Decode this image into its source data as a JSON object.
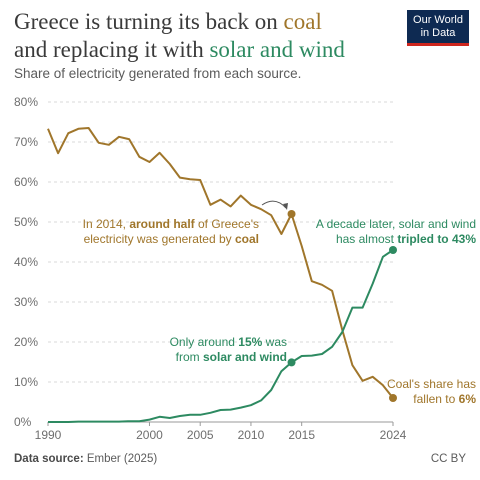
{
  "title_parts": {
    "l1": "Greece is turning its back on ",
    "coal": "coal",
    "l2": "and replacing it with ",
    "solar": "solar and wind"
  },
  "subtitle": "Share of electricity generated from each source.",
  "logo": {
    "line1": "Our World",
    "line2": "in Data"
  },
  "footer": {
    "source_label": "Data source:",
    "source_text": " Ember (2025)",
    "license": "CC BY"
  },
  "colors": {
    "coal": "#a0762b",
    "solar_wind": "#2d8a61",
    "grid": "#d9d9d9",
    "axis_text": "#6e6e6e"
  },
  "chart_data": {
    "type": "line",
    "x_ticks": [
      "1990",
      "2000",
      "2005",
      "2010",
      "2015",
      "2024"
    ],
    "y_ticks": [
      "0%",
      "10%",
      "20%",
      "30%",
      "40%",
      "50%",
      "60%",
      "70%",
      "80%"
    ],
    "xlim": [
      1990,
      2024
    ],
    "ylim": [
      0,
      80
    ],
    "series": [
      {
        "key": "coal",
        "x": [
          1990,
          1991,
          1992,
          1993,
          1994,
          1995,
          1996,
          1997,
          1998,
          1999,
          2000,
          2001,
          2002,
          2003,
          2004,
          2005,
          2006,
          2007,
          2008,
          2009,
          2010,
          2011,
          2012,
          2013,
          2014,
          2015,
          2016,
          2017,
          2018,
          2019,
          2020,
          2021,
          2022,
          2023,
          2024
        ],
        "values": [
          73.3,
          67.2,
          72.2,
          73.3,
          73.5,
          69.8,
          69.3,
          71.3,
          70.7,
          66.3,
          65.0,
          67.3,
          64.5,
          61.1,
          60.7,
          60.5,
          54.3,
          55.6,
          53.9,
          56.6,
          54.3,
          53.2,
          51.7,
          47.0,
          52.0,
          44.0,
          35.2,
          34.3,
          32.8,
          23.0,
          14.2,
          10.3,
          11.3,
          9.2,
          6.0
        ]
      },
      {
        "key": "solar_wind",
        "x": [
          1990,
          1991,
          1992,
          1993,
          1994,
          1995,
          1996,
          1997,
          1998,
          1999,
          2000,
          2001,
          2002,
          2003,
          2004,
          2005,
          2006,
          2007,
          2008,
          2009,
          2010,
          2011,
          2012,
          2013,
          2014,
          2015,
          2016,
          2017,
          2018,
          2019,
          2020,
          2021,
          2022,
          2023,
          2024
        ],
        "values": [
          0.0,
          0.0,
          0.0,
          0.1,
          0.1,
          0.1,
          0.1,
          0.1,
          0.2,
          0.2,
          0.6,
          1.3,
          1.0,
          1.5,
          1.8,
          1.8,
          2.3,
          3.0,
          3.1,
          3.6,
          4.2,
          5.4,
          8.0,
          12.7,
          14.9,
          16.5,
          16.6,
          17.0,
          18.8,
          22.5,
          28.6,
          28.6,
          34.6,
          41.3,
          43.0
        ]
      }
    ],
    "annotations": [
      {
        "key": "coal_2014",
        "parts": [
          [
            {
              "t": "In 2014, "
            },
            {
              "t": "around half",
              "b": true
            },
            {
              "t": " of Greece's"
            }
          ],
          [
            {
              "t": "electricity was generated by "
            },
            {
              "t": "coal",
              "b": true
            }
          ]
        ]
      },
      {
        "key": "solar_2024",
        "parts": [
          [
            {
              "t": "A decade later, solar and wind"
            }
          ],
          [
            {
              "t": "has almost "
            },
            {
              "t": "tripled to 43%",
              "b": true
            }
          ]
        ]
      },
      {
        "key": "solar_2014",
        "parts": [
          [
            {
              "t": "Only around "
            },
            {
              "t": "15%",
              "b": true
            },
            {
              "t": " was"
            }
          ],
          [
            {
              "t": "from "
            },
            {
              "t": "solar and wind",
              "b": true
            }
          ]
        ]
      },
      {
        "key": "coal_2024",
        "parts": [
          [
            {
              "t": "Coal's share has"
            }
          ],
          [
            {
              "t": "fallen to "
            },
            {
              "t": "6%",
              "b": true
            }
          ]
        ]
      }
    ]
  }
}
